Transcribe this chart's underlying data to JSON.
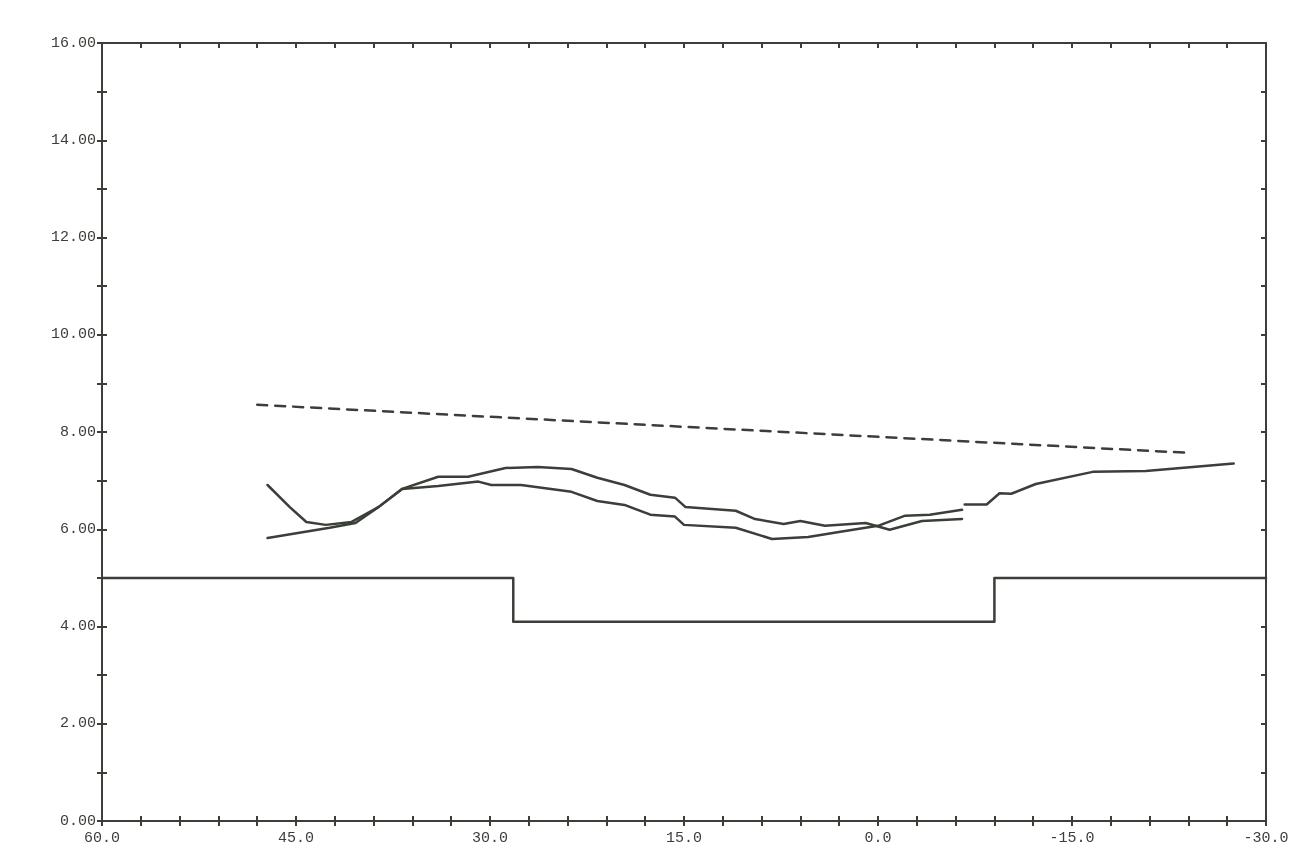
{
  "chart_data": {
    "type": "line",
    "xlim": [
      60,
      -30
    ],
    "xticks": [
      {
        "value": 60,
        "label": "60.0"
      },
      {
        "value": 57,
        "label": null
      },
      {
        "value": 54,
        "label": null
      },
      {
        "value": 51,
        "label": null
      },
      {
        "value": 48,
        "label": null
      },
      {
        "value": 45,
        "label": "45.0"
      },
      {
        "value": 42,
        "label": null
      },
      {
        "value": 39,
        "label": null
      },
      {
        "value": 36,
        "label": null
      },
      {
        "value": 33,
        "label": null
      },
      {
        "value": 30,
        "label": "30.0"
      },
      {
        "value": 27,
        "label": null
      },
      {
        "value": 24,
        "label": null
      },
      {
        "value": 21,
        "label": null
      },
      {
        "value": 18,
        "label": null
      },
      {
        "value": 15,
        "label": "15.0"
      },
      {
        "value": 12,
        "label": null
      },
      {
        "value": 9,
        "label": null
      },
      {
        "value": 6,
        "label": null
      },
      {
        "value": 3,
        "label": null
      },
      {
        "value": 0,
        "label": "0.0"
      },
      {
        "value": -3,
        "label": null
      },
      {
        "value": -6,
        "label": null
      },
      {
        "value": -9,
        "label": null
      },
      {
        "value": -12,
        "label": null
      },
      {
        "value": -15,
        "label": "-15.0"
      },
      {
        "value": -18,
        "label": null
      },
      {
        "value": -21,
        "label": null
      },
      {
        "value": -24,
        "label": null
      },
      {
        "value": -27,
        "label": null
      },
      {
        "value": -30,
        "label": "-30.0"
      }
    ],
    "ylim": [
      0,
      16
    ],
    "yticks": [
      {
        "value": 0,
        "label": "0.00"
      },
      {
        "value": 1,
        "label": null
      },
      {
        "value": 2,
        "label": "2.00"
      },
      {
        "value": 3,
        "label": null
      },
      {
        "value": 4,
        "label": "4.00"
      },
      {
        "value": 5,
        "label": null
      },
      {
        "value": 6,
        "label": "6.00"
      },
      {
        "value": 7,
        "label": null
      },
      {
        "value": 8,
        "label": "8.00"
      },
      {
        "value": 9,
        "label": null
      },
      {
        "value": 10,
        "label": "10.00"
      },
      {
        "value": 11,
        "label": null
      },
      {
        "value": 12,
        "label": "12.00"
      },
      {
        "value": 13,
        "label": null
      },
      {
        "value": 14,
        "label": "14.00"
      },
      {
        "value": 15,
        "label": null
      },
      {
        "value": 16,
        "label": "16.00"
      }
    ],
    "grid": false,
    "series": [
      {
        "type": "step",
        "color": "#3a3f38",
        "x": [
          60,
          28.2,
          -9,
          -30
        ],
        "values": [
          5,
          4.1,
          5,
          5
        ]
      },
      {
        "color": "#3a3f38",
        "line_style": "dashed",
        "x": [
          48,
          -24.1
        ],
        "values": [
          8.56,
          7.57
        ]
      },
      {
        "color": "#3a3f38",
        "x": [
          47.2,
          45.5,
          44.2,
          42.7,
          40.7,
          38.6,
          36.8,
          34.0,
          30.9,
          29.9,
          27.6,
          23.7,
          21.7,
          19.6,
          17.6,
          15.7,
          15.0,
          11.0,
          8.2,
          5.4,
          2.9,
          0.0,
          -2.1,
          -4.0,
          -6.5
        ],
        "values": [
          6.91,
          6.46,
          6.15,
          6.09,
          6.15,
          6.46,
          6.83,
          6.89,
          6.98,
          6.91,
          6.91,
          6.77,
          6.58,
          6.5,
          6.3,
          6.26,
          6.09,
          6.03,
          5.8,
          5.84,
          5.95,
          6.07,
          6.28,
          6.3,
          6.4
        ]
      },
      {
        "color": "#3a3f38",
        "x": [
          47.2,
          42.4,
          40.4,
          38.6,
          36.8,
          34.0,
          31.7,
          28.8,
          26.3,
          23.7,
          21.7,
          19.6,
          17.6,
          15.7,
          14.9,
          11.0,
          9.5,
          7.3,
          6.0,
          4.1,
          0.95,
          -0.9,
          -3.4,
          -6.5
        ],
        "values": [
          5.82,
          6.03,
          6.13,
          6.46,
          6.83,
          7.08,
          7.08,
          7.26,
          7.28,
          7.24,
          7.06,
          6.91,
          6.71,
          6.65,
          6.46,
          6.38,
          6.21,
          6.11,
          6.17,
          6.07,
          6.13,
          5.99,
          6.17,
          6.21
        ]
      },
      {
        "color": "#3a3f38",
        "x": [
          -6.7,
          -8.4,
          -9.4,
          -10.3,
          -12.2,
          -16.6,
          -20.7,
          -27.5
        ],
        "values": [
          6.51,
          6.51,
          6.74,
          6.73,
          6.93,
          7.18,
          7.2,
          7.35
        ]
      }
    ]
  }
}
